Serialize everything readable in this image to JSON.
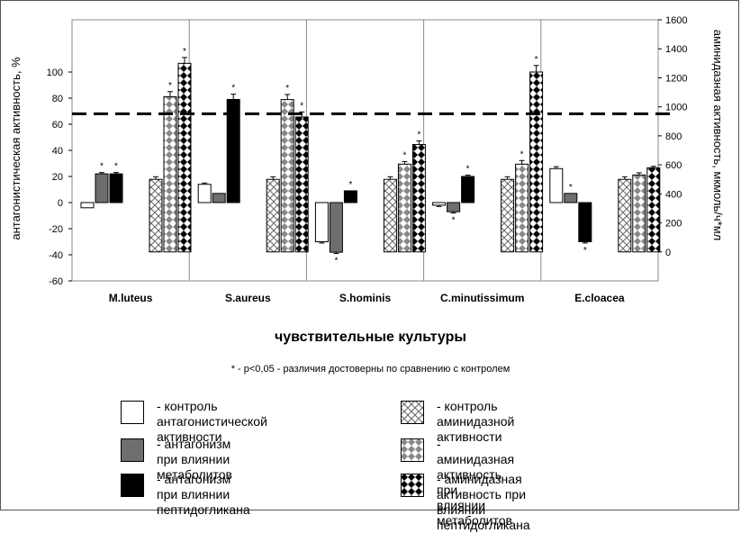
{
  "chart_data": {
    "type": "bar",
    "categories": [
      "M.luteus",
      "S.aureus",
      "S.hominis",
      "C.minutissimum",
      "E.cloacea"
    ],
    "xlabel": "чувствительные культуры",
    "ylabel_left": "антагонистическая активность, %",
    "ylabel_right": "аминидазная активность, мкмоль/ч*мл",
    "ylim_left": [
      -60,
      140
    ],
    "yticks_left": [
      -60,
      -40,
      -20,
      0,
      20,
      40,
      60,
      80,
      100
    ],
    "ylim_right": [
      -200,
      1600
    ],
    "yticks_right": [
      0,
      200,
      400,
      600,
      800,
      1000,
      1200,
      1400,
      1600
    ],
    "reference_line_left": 68,
    "note": "* - p<0,05 - различия достоверны по сравнению с контролем",
    "series": [
      {
        "name": "- контроль антагонистической активности",
        "axis": "left",
        "pattern": "white",
        "values": [
          -4,
          14,
          -30,
          -2,
          26
        ],
        "errors": [
          0,
          1,
          1,
          1,
          1.5
        ],
        "stars": [
          false,
          false,
          false,
          false,
          false
        ]
      },
      {
        "name": "- антагонизм при влиянии метаболитов",
        "axis": "left",
        "pattern": "gray",
        "values": [
          22,
          7,
          -38,
          -7,
          7
        ],
        "errors": [
          1,
          0,
          1,
          1,
          0
        ],
        "stars": [
          true,
          false,
          true,
          true,
          true
        ]
      },
      {
        "name": "- антагонизм при влиянии пептидогликана",
        "axis": "left",
        "pattern": "black",
        "values": [
          22,
          79,
          9,
          20,
          -30
        ],
        "errors": [
          1,
          4,
          0,
          1,
          1
        ],
        "stars": [
          true,
          true,
          true,
          true,
          true
        ]
      },
      {
        "name": "- контроль аминидазной активности",
        "axis": "right",
        "pattern": "check-light",
        "values": [
          500,
          500,
          500,
          500,
          500
        ],
        "errors": [
          18,
          18,
          18,
          18,
          18
        ],
        "stars": [
          false,
          false,
          false,
          false,
          false
        ]
      },
      {
        "name": "- аминидазная активность при влиянии метаболитов",
        "axis": "right",
        "pattern": "check-mid",
        "values": [
          1070,
          1050,
          605,
          605,
          530
        ],
        "errors": [
          35,
          35,
          18,
          25,
          15
        ],
        "stars": [
          true,
          true,
          true,
          true,
          false
        ]
      },
      {
        "name": "- аминидазная активность при влиянии пептидогликана",
        "axis": "right",
        "pattern": "check-dark",
        "values": [
          1300,
          930,
          740,
          1240,
          580
        ],
        "errors": [
          40,
          35,
          25,
          45,
          10
        ],
        "stars": [
          true,
          true,
          true,
          true,
          false
        ]
      }
    ]
  },
  "legend": [
    {
      "text": "- контроль антагонистической\nактивности"
    },
    {
      "text": "- антагонизм при влиянии\nметаболитов"
    },
    {
      "text": "- антагонизм при влиянии\nпептидогликана"
    },
    {
      "text": "- контроль аминидазной\nактивности"
    },
    {
      "text": "- аминидазная активность при\nвлиянии метаболитов"
    },
    {
      "text": "- аминидазная активность при\nвлиянии пептидогликана"
    }
  ],
  "colors": {
    "gray": "#6e6e6e",
    "black": "#000000",
    "grid": "#888888"
  }
}
